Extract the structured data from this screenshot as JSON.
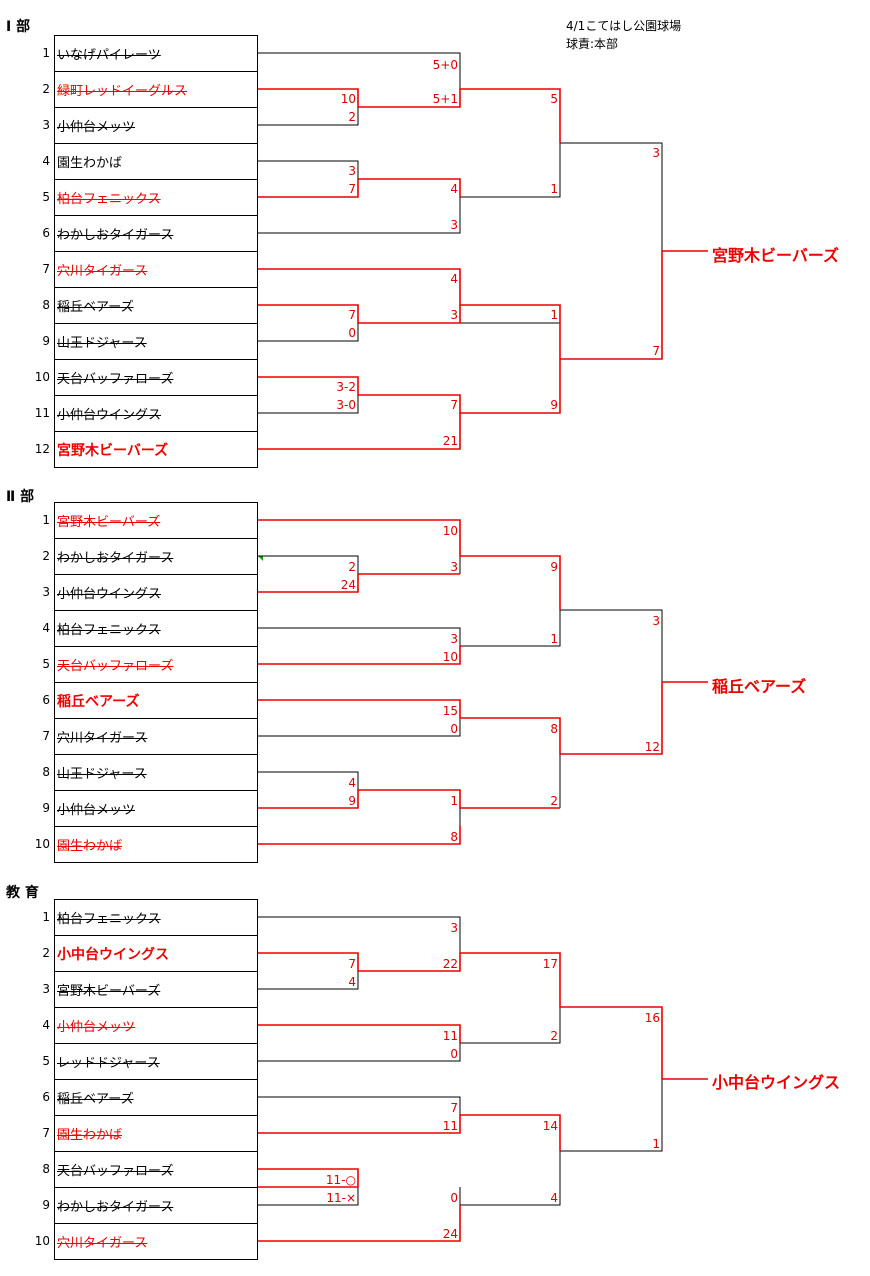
{
  "info": {
    "venue": "4/1こてはし公園球場",
    "official": "球責:本部"
  },
  "sections": [
    {
      "label": "Ⅰ 部",
      "teams": [
        {
          "no": "1",
          "name": "いなげパイレーツ",
          "style": "lost"
        },
        {
          "no": "2",
          "name": "緑町レッドイーグルス",
          "style": "redlost"
        },
        {
          "no": "3",
          "name": "小仲台メッツ",
          "style": "lost"
        },
        {
          "no": "4",
          "name": "園生わかば",
          "style": "plain"
        },
        {
          "no": "5",
          "name": "柏台フェニックス",
          "style": "redlost"
        },
        {
          "no": "6",
          "name": "わかしおタイガース",
          "style": "lost"
        },
        {
          "no": "7",
          "name": "穴川タイガース",
          "style": "redlost"
        },
        {
          "no": "8",
          "name": "稲丘ベアーズ",
          "style": "lost"
        },
        {
          "no": "9",
          "name": "山王ドジャース",
          "style": "lost"
        },
        {
          "no": "10",
          "name": "天台バッファローズ",
          "style": "lost"
        },
        {
          "no": "11",
          "name": "小仲台ウイングス",
          "style": "lost"
        },
        {
          "no": "12",
          "name": "宮野木ビーバーズ",
          "style": "champ"
        }
      ],
      "scores": [
        "5+0",
        "10",
        "5+1",
        "2",
        "5",
        "3",
        "3",
        "7",
        "4",
        "1",
        "3",
        "4",
        "7",
        "3",
        "1",
        "0",
        "7",
        "3-2",
        "3-0",
        "7",
        "9",
        "21"
      ],
      "winner": "宮野木ビーバーズ"
    },
    {
      "label": "Ⅱ 部",
      "teams": [
        {
          "no": "1",
          "name": "宮野木ビーバーズ",
          "style": "redlost"
        },
        {
          "no": "2",
          "name": "わかしおタイガース",
          "style": "lost"
        },
        {
          "no": "3",
          "name": "小仲台ウイングス",
          "style": "lost"
        },
        {
          "no": "4",
          "name": "柏台フェニックス",
          "style": "lost"
        },
        {
          "no": "5",
          "name": "天台バッファローズ",
          "style": "redlost"
        },
        {
          "no": "6",
          "name": "稲丘ベアーズ",
          "style": "champ"
        },
        {
          "no": "7",
          "name": "穴川タイガース",
          "style": "lost"
        },
        {
          "no": "8",
          "name": "山王ドジャース",
          "style": "lost"
        },
        {
          "no": "9",
          "name": "小仲台メッツ",
          "style": "lost"
        },
        {
          "no": "10",
          "name": "園生わかば",
          "style": "redlost"
        }
      ],
      "scores": [
        "10",
        "2",
        "3",
        "24",
        "9",
        "3",
        "3",
        "1",
        "10",
        "15",
        "0",
        "8",
        "12",
        "4",
        "9",
        "1",
        "2",
        "8"
      ],
      "winner": "稲丘ベアーズ"
    },
    {
      "label": "教 育",
      "teams": [
        {
          "no": "1",
          "name": "柏台フェニックス",
          "style": "lost"
        },
        {
          "no": "2",
          "name": "小中台ウイングス",
          "style": "champ"
        },
        {
          "no": "3",
          "name": "宮野木ビーバーズ",
          "style": "lost"
        },
        {
          "no": "4",
          "name": "小仲台メッツ",
          "style": "redlost"
        },
        {
          "no": "5",
          "name": "レッドドジャース",
          "style": "lost"
        },
        {
          "no": "6",
          "name": "稲丘ベアーズ",
          "style": "lost"
        },
        {
          "no": "7",
          "name": "園生わかば",
          "style": "redlost"
        },
        {
          "no": "8",
          "name": "天台バッファローズ",
          "style": "lost"
        },
        {
          "no": "9",
          "name": "わかしおタイガース",
          "style": "lost"
        },
        {
          "no": "10",
          "name": "穴川タイガース",
          "style": "redlost"
        }
      ],
      "scores": [
        "3",
        "7",
        "22",
        "17",
        "4",
        "16",
        "11",
        "2",
        "0",
        "7",
        "14",
        "11",
        "1",
        "11-○",
        "11-×",
        "0",
        "4",
        "24"
      ],
      "winner": "小中台ウイングス"
    }
  ]
}
